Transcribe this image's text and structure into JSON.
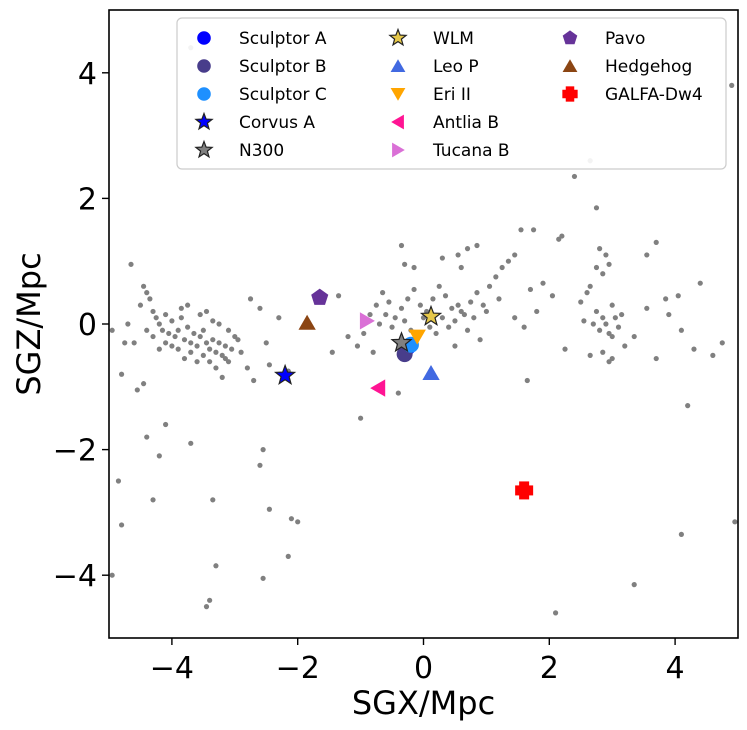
{
  "chart_data": {
    "type": "scatter",
    "xlabel": "SGX/Mpc",
    "ylabel": "SGZ/Mpc",
    "xlim": [
      -5.0,
      5.0
    ],
    "ylim": [
      -5.0,
      5.0
    ],
    "xticks": [
      -4,
      -2,
      0,
      2,
      4
    ],
    "yticks": [
      -4,
      -2,
      0,
      2,
      4
    ],
    "xtick_labels": [
      "−4",
      "−2",
      "0",
      "2",
      "4"
    ],
    "ytick_labels": [
      "−4",
      "−2",
      "0",
      "2",
      "4"
    ],
    "grid": false,
    "legend_position": "top-right",
    "legend_columns": 3,
    "background_points": {
      "color": "#808080",
      "points": [
        [
          -4.45,
          0.6
        ],
        [
          -4.4,
          0.5
        ],
        [
          -4.35,
          0.4
        ],
        [
          -4.3,
          0.2
        ],
        [
          -4.25,
          0.1
        ],
        [
          -4.2,
          0.0
        ],
        [
          -4.15,
          -0.1
        ],
        [
          -4.1,
          0.15
        ],
        [
          -4.05,
          -0.15
        ],
        [
          -4.0,
          0.05
        ],
        [
          -3.95,
          -0.2
        ],
        [
          -3.9,
          -0.1
        ],
        [
          -3.85,
          0.1
        ],
        [
          -3.8,
          -0.25
        ],
        [
          -3.75,
          -0.05
        ],
        [
          -3.7,
          -0.3
        ],
        [
          -3.65,
          -0.15
        ],
        [
          -3.6,
          -0.35
        ],
        [
          -3.55,
          -0.2
        ],
        [
          -3.5,
          -0.1
        ],
        [
          -3.45,
          -0.3
        ],
        [
          -3.4,
          -0.4
        ],
        [
          -3.35,
          -0.25
        ],
        [
          -3.3,
          -0.45
        ],
        [
          -3.25,
          -0.3
        ],
        [
          -3.2,
          -0.5
        ],
        [
          -3.15,
          -0.35
        ],
        [
          -3.1,
          -0.6
        ],
        [
          -3.05,
          -0.4
        ],
        [
          -3.0,
          -0.2
        ],
        [
          -3.3,
          -0.7
        ],
        [
          -3.2,
          -0.85
        ],
        [
          -3.15,
          -0.55
        ],
        [
          -3.4,
          -0.6
        ],
        [
          -3.5,
          -0.5
        ],
        [
          -3.6,
          -0.6
        ],
        [
          -3.7,
          -0.45
        ],
        [
          -3.8,
          -0.55
        ],
        [
          -3.9,
          -0.4
        ],
        [
          -4.0,
          -0.35
        ],
        [
          -4.1,
          -0.3
        ],
        [
          -4.2,
          -0.4
        ],
        [
          -4.3,
          -0.2
        ],
        [
          -4.4,
          -0.1
        ],
        [
          -4.5,
          0.3
        ],
        [
          -4.6,
          -0.3
        ],
        [
          -4.7,
          0.0
        ],
        [
          -4.8,
          -0.8
        ],
        [
          -4.55,
          -1.05
        ],
        [
          -4.45,
          -0.95
        ],
        [
          -3.85,
          0.25
        ],
        [
          -3.75,
          0.3
        ],
        [
          -3.55,
          0.15
        ],
        [
          -3.45,
          0.2
        ],
        [
          -3.35,
          0.05
        ],
        [
          -3.25,
          0.0
        ],
        [
          -3.1,
          -0.1
        ],
        [
          -2.95,
          -0.25
        ],
        [
          -2.9,
          -0.45
        ],
        [
          -2.8,
          -0.7
        ],
        [
          -2.7,
          -0.9
        ],
        [
          -2.75,
          0.4
        ],
        [
          -2.6,
          0.25
        ],
        [
          -2.5,
          -0.3
        ],
        [
          -2.45,
          -0.65
        ],
        [
          -2.3,
          0.1
        ],
        [
          -4.85,
          -2.5
        ],
        [
          -4.8,
          -3.2
        ],
        [
          -4.95,
          -4.0
        ],
        [
          -4.4,
          -1.8
        ],
        [
          -4.2,
          -2.1
        ],
        [
          -4.1,
          -1.6
        ],
        [
          -4.3,
          -2.8
        ],
        [
          -3.7,
          -1.9
        ],
        [
          -3.35,
          -2.8
        ],
        [
          -3.3,
          -3.85
        ],
        [
          -3.4,
          -4.4
        ],
        [
          -3.45,
          -4.5
        ],
        [
          -2.55,
          -2.0
        ],
        [
          -2.6,
          -2.25
        ],
        [
          -2.45,
          -2.95
        ],
        [
          -2.55,
          -4.05
        ],
        [
          -2.15,
          -3.7
        ],
        [
          -2.1,
          -3.1
        ],
        [
          -2.0,
          -3.15
        ],
        [
          -4.65,
          0.95
        ],
        [
          -3.7,
          4.4
        ],
        [
          -4.95,
          -0.1
        ],
        [
          -4.75,
          -0.3
        ],
        [
          -2.15,
          -0.75
        ],
        [
          -1.45,
          -0.45
        ],
        [
          -1.35,
          0.45
        ],
        [
          -1.2,
          -0.2
        ],
        [
          -1.05,
          -0.35
        ],
        [
          -0.95,
          -0.15
        ],
        [
          -0.85,
          0.15
        ],
        [
          -0.75,
          0.3
        ],
        [
          -0.65,
          0.5
        ],
        [
          -0.55,
          0.35
        ],
        [
          -0.45,
          0.1
        ],
        [
          -0.35,
          0.25
        ],
        [
          -0.25,
          0.4
        ],
        [
          -0.15,
          0.55
        ],
        [
          -0.05,
          0.3
        ],
        [
          0.05,
          0.2
        ],
        [
          0.15,
          0.4
        ],
        [
          0.25,
          0.6
        ],
        [
          0.35,
          0.45
        ],
        [
          0.45,
          0.25
        ],
        [
          0.55,
          0.3
        ],
        [
          0.65,
          0.15
        ],
        [
          0.75,
          0.35
        ],
        [
          0.85,
          0.5
        ],
        [
          0.95,
          0.3
        ],
        [
          1.05,
          0.6
        ],
        [
          1.15,
          0.75
        ],
        [
          1.25,
          0.9
        ],
        [
          1.35,
          1.0
        ],
        [
          1.45,
          1.1
        ],
        [
          0.3,
          0.1
        ],
        [
          0.4,
          -0.05
        ],
        [
          0.5,
          0.05
        ],
        [
          0.6,
          0.2
        ],
        [
          0.7,
          -0.1
        ],
        [
          0.8,
          0.1
        ],
        [
          0.2,
          -0.15
        ],
        [
          0.1,
          -0.05
        ],
        [
          0.0,
          0.1
        ],
        [
          -0.1,
          -0.2
        ],
        [
          -0.2,
          -0.1
        ],
        [
          -0.3,
          0.05
        ],
        [
          -0.4,
          -0.3
        ],
        [
          -0.5,
          -0.05
        ],
        [
          -0.6,
          0.15
        ],
        [
          -0.7,
          0.0
        ],
        [
          -0.8,
          -0.45
        ],
        [
          -1.0,
          -1.5
        ],
        [
          -0.4,
          -1.1
        ],
        [
          0.5,
          -0.35
        ],
        [
          0.9,
          -0.25
        ],
        [
          1.0,
          0.2
        ],
        [
          1.2,
          0.4
        ],
        [
          0.6,
          0.9
        ],
        [
          0.7,
          1.2
        ],
        [
          0.3,
          1.05
        ],
        [
          0.55,
          1.1
        ],
        [
          0.85,
          1.25
        ],
        [
          -0.35,
          1.25
        ],
        [
          -0.3,
          0.95
        ],
        [
          -0.15,
          0.9
        ],
        [
          1.45,
          0.1
        ],
        [
          1.6,
          -0.05
        ],
        [
          1.7,
          0.55
        ],
        [
          1.8,
          0.2
        ],
        [
          1.9,
          0.65
        ],
        [
          2.05,
          0.45
        ],
        [
          1.65,
          -0.9
        ],
        [
          2.25,
          -0.4
        ],
        [
          1.55,
          1.5
        ],
        [
          2.15,
          1.35
        ],
        [
          2.5,
          0.35
        ],
        [
          2.6,
          0.5
        ],
        [
          2.65,
          0.6
        ],
        [
          2.7,
          0.0
        ],
        [
          2.75,
          0.2
        ],
        [
          2.8,
          -0.1
        ],
        [
          2.85,
          0.1
        ],
        [
          2.9,
          0.0
        ],
        [
          2.95,
          -0.15
        ],
        [
          3.0,
          0.3
        ],
        [
          3.05,
          0.1
        ],
        [
          3.1,
          -0.05
        ],
        [
          2.75,
          0.9
        ],
        [
          2.85,
          0.8
        ],
        [
          2.95,
          0.95
        ],
        [
          2.8,
          1.2
        ],
        [
          2.9,
          1.1
        ],
        [
          2.65,
          -0.5
        ],
        [
          2.85,
          -0.45
        ],
        [
          3.0,
          -0.55
        ],
        [
          3.2,
          -0.35
        ],
        [
          3.35,
          -0.2
        ],
        [
          3.55,
          0.25
        ],
        [
          3.7,
          -0.55
        ],
        [
          3.55,
          1.1
        ],
        [
          3.85,
          0.4
        ],
        [
          4.05,
          0.45
        ],
        [
          4.1,
          -0.1
        ],
        [
          4.3,
          -0.4
        ],
        [
          4.4,
          0.65
        ],
        [
          4.6,
          -0.5
        ],
        [
          4.75,
          -0.3
        ],
        [
          4.9,
          3.8
        ],
        [
          4.95,
          -3.15
        ],
        [
          4.2,
          -1.3
        ],
        [
          4.1,
          -3.35
        ],
        [
          3.35,
          -4.15
        ],
        [
          3.3,
          4.0
        ],
        [
          2.65,
          2.6
        ],
        [
          2.75,
          1.85
        ],
        [
          2.4,
          2.35
        ],
        [
          2.2,
          1.4
        ],
        [
          1.75,
          1.5
        ],
        [
          2.1,
          -4.6
        ],
        [
          2.95,
          -0.6
        ],
        [
          3.0,
          -0.2
        ],
        [
          3.15,
          0.15
        ],
        [
          2.55,
          0.05
        ],
        [
          3.7,
          1.3
        ],
        [
          3.9,
          0.15
        ]
      ]
    },
    "series": [
      {
        "name": "Sculptor A",
        "marker": "circle",
        "color": "#0000ff",
        "x": -0.25,
        "y": -0.37
      },
      {
        "name": "Sculptor B",
        "marker": "circle",
        "color": "#483d8b",
        "x": -0.3,
        "y": -0.48
      },
      {
        "name": "Sculptor C",
        "marker": "circle",
        "color": "#1e90ff",
        "x": -0.2,
        "y": -0.33
      },
      {
        "name": "Corvus A",
        "marker": "star",
        "color": "#0000ff",
        "x": -2.2,
        "y": -0.82
      },
      {
        "name": "N300",
        "marker": "star",
        "color": "#808080",
        "x": -0.35,
        "y": -0.3
      },
      {
        "name": "WLM",
        "marker": "star",
        "color": "#e6c84a",
        "x": 0.12,
        "y": 0.12
      },
      {
        "name": "Leo P",
        "marker": "triangle-up",
        "color": "#4169e1",
        "x": 0.12,
        "y": -0.78
      },
      {
        "name": "Eri II",
        "marker": "triangle-down",
        "color": "#ffa500",
        "x": -0.1,
        "y": -0.2
      },
      {
        "name": "Antlia B",
        "marker": "triangle-left",
        "color": "#ff1493",
        "x": -0.72,
        "y": -1.02
      },
      {
        "name": "Tucana B",
        "marker": "triangle-right",
        "color": "#da70d6",
        "x": -0.9,
        "y": 0.05
      },
      {
        "name": "Pavo",
        "marker": "pentagon",
        "color": "#663399",
        "x": -1.65,
        "y": 0.42
      },
      {
        "name": "Hedgehog",
        "marker": "triangle-up",
        "color": "#8b4513",
        "x": -1.85,
        "y": 0.02
      },
      {
        "name": "GALFA-Dw4",
        "marker": "plus",
        "color": "#ff0000",
        "x": 1.6,
        "y": -2.65
      }
    ]
  }
}
